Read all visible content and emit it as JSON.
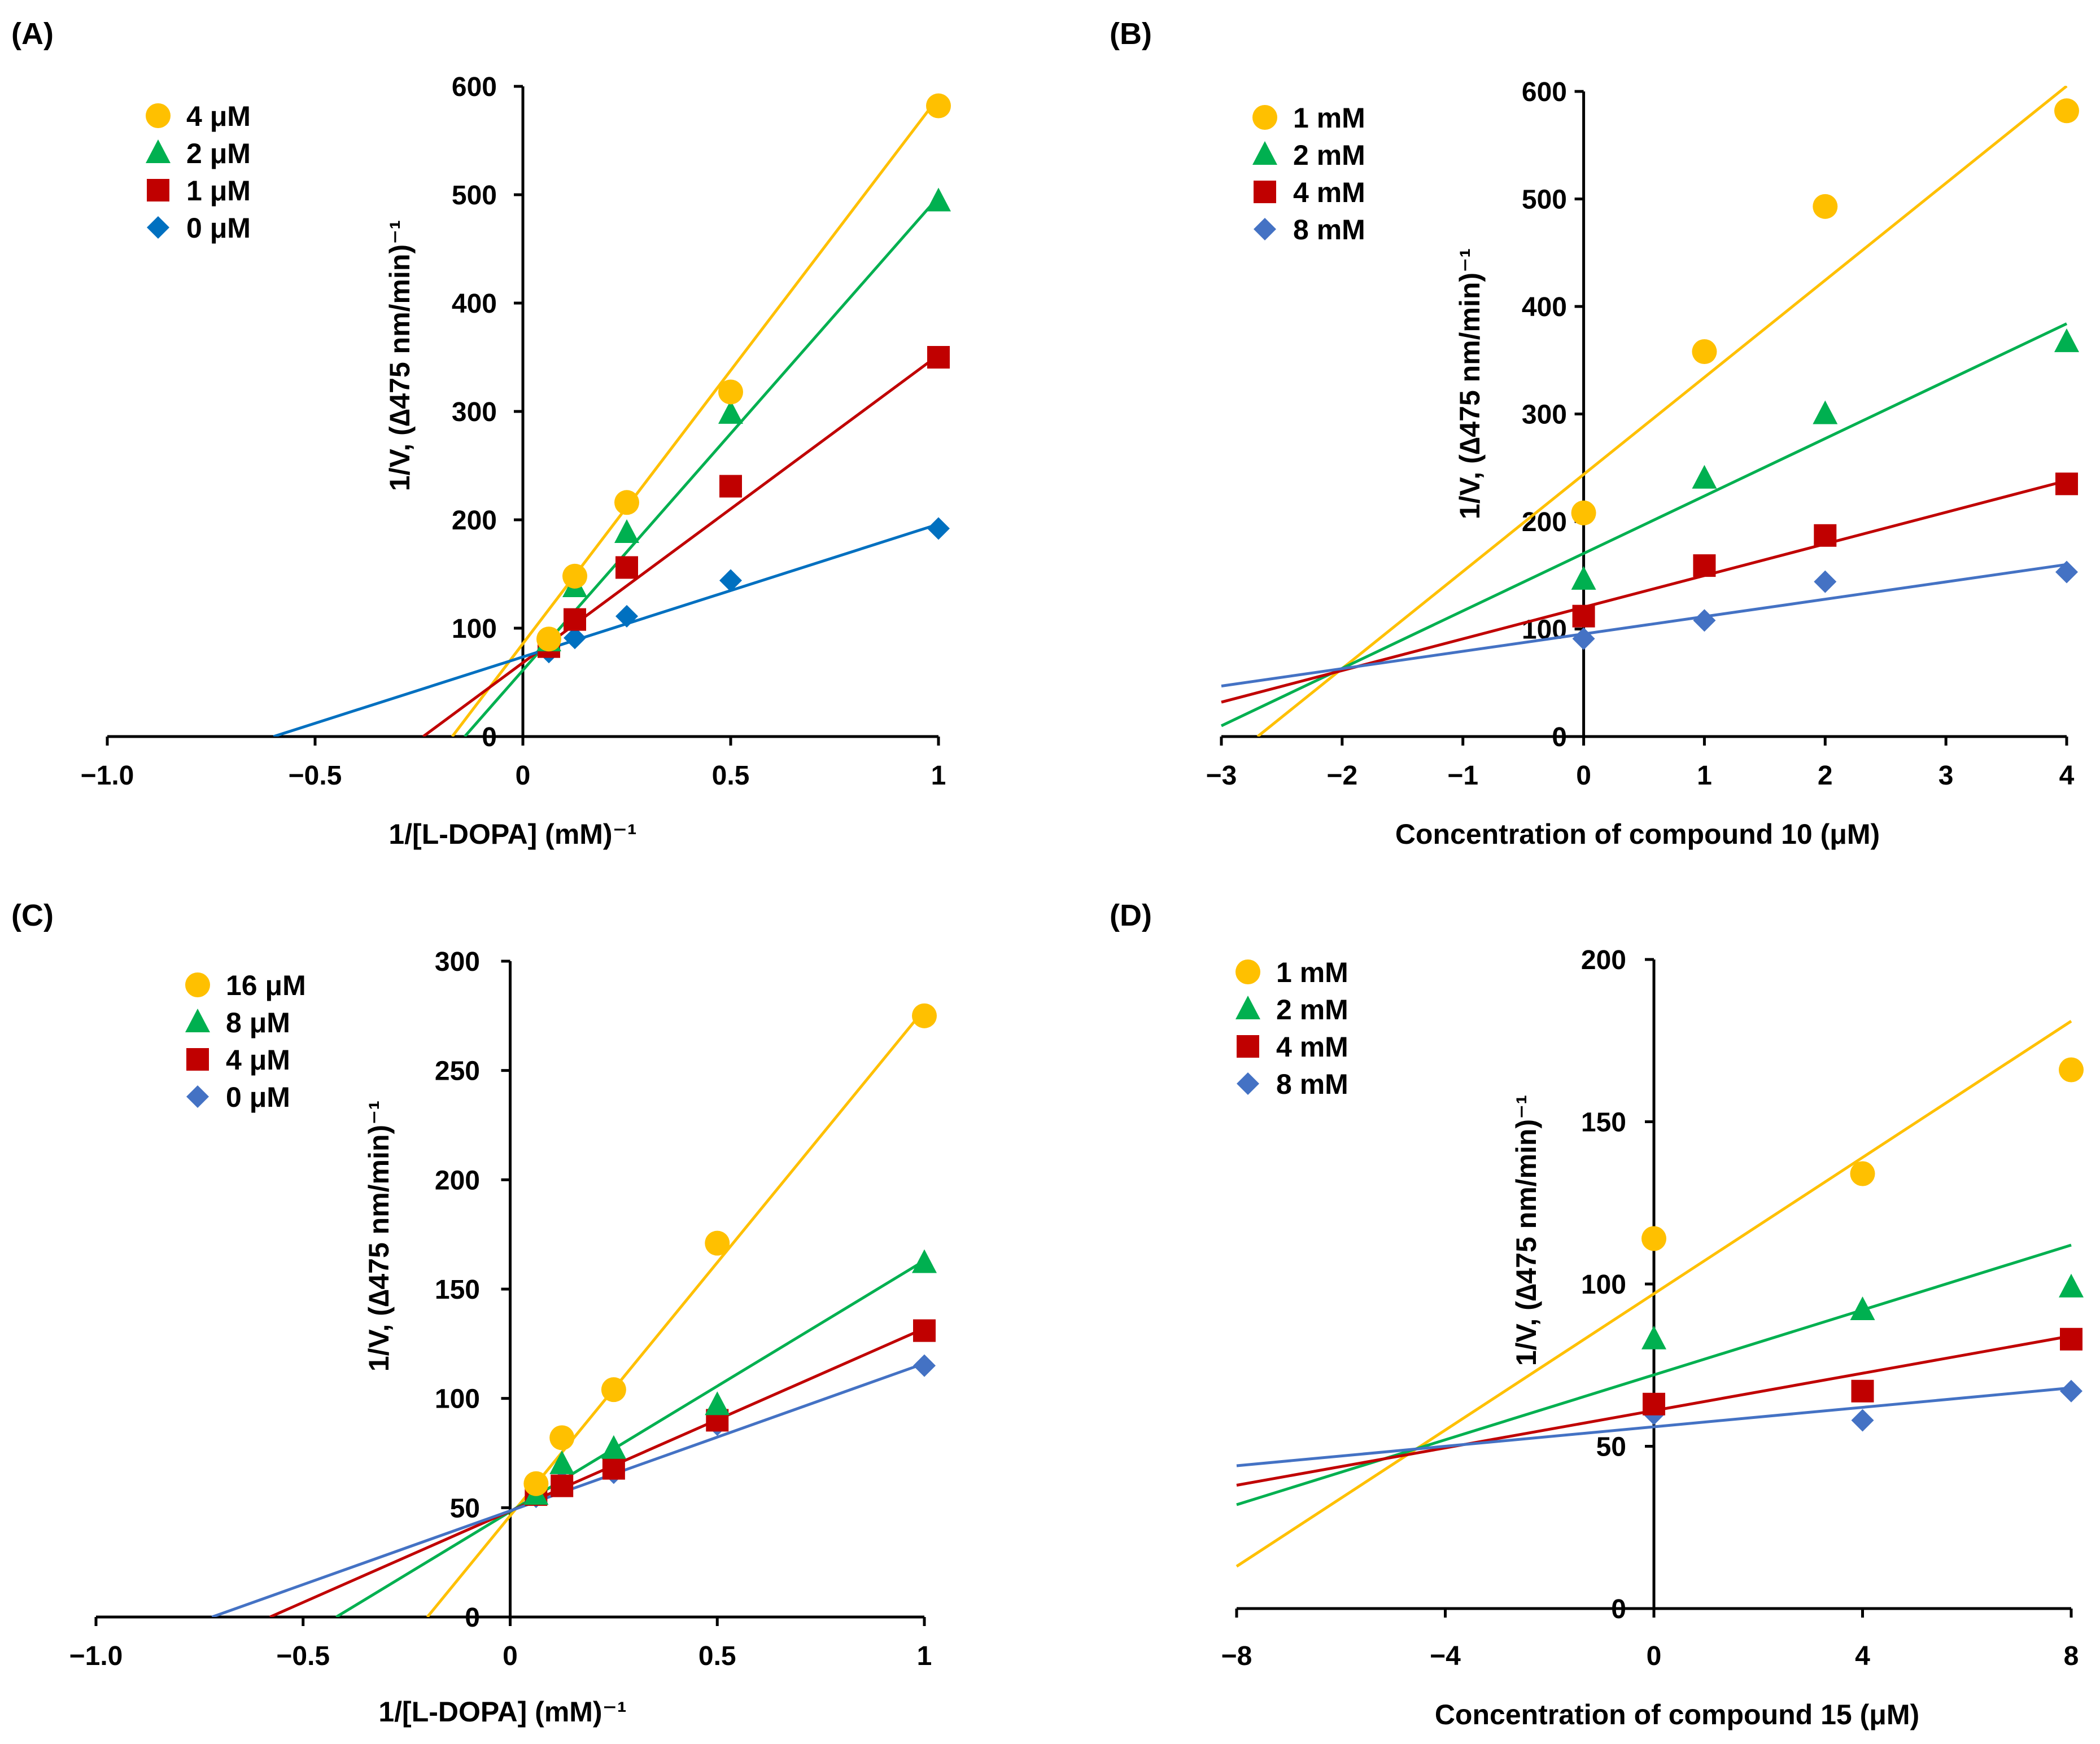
{
  "chart_data": [
    {
      "id": "A",
      "type": "scatter",
      "panel_label": "(A)",
      "xlabel": "1/[L-DOPA] (mM)⁻¹",
      "ylabel": "1/V, (∆475 nm/min)⁻¹",
      "xlim": [
        -1.0,
        1.0
      ],
      "ylim": [
        0,
        600
      ],
      "xticks": [
        -1.0,
        -0.5,
        0,
        0.5,
        1
      ],
      "xtick_labels": [
        "−1.0",
        "−0.5",
        "0",
        "0.5",
        "1"
      ],
      "yticks": [
        0,
        100,
        200,
        300,
        400,
        500,
        600
      ],
      "ytick_labels": [
        "0",
        "100",
        "200",
        "300",
        "400",
        "500",
        "600"
      ],
      "legend_position": "top-left",
      "series": [
        {
          "name": "4 μM",
          "color": "#FFC000",
          "marker": "circle",
          "x": [
            0.0625,
            0.125,
            0.25,
            0.5,
            1
          ],
          "y": [
            90,
            148,
            216,
            318,
            582
          ],
          "fit": [
            [
              -0.17,
              0
            ],
            [
              1,
              590
            ]
          ]
        },
        {
          "name": "2 μM",
          "color": "#00B050",
          "marker": "triangle",
          "x": [
            0.0625,
            0.125,
            0.25,
            0.5,
            1
          ],
          "y": [
            88,
            138,
            188,
            298,
            494
          ],
          "fit": [
            [
              -0.14,
              0
            ],
            [
              1,
              498
            ]
          ]
        },
        {
          "name": "1 μM",
          "color": "#C00000",
          "marker": "square",
          "x": [
            0.0625,
            0.125,
            0.25,
            0.5,
            1
          ],
          "y": [
            83,
            108,
            156,
            231,
            350
          ],
          "fit": [
            [
              -0.24,
              0
            ],
            [
              1,
              352
            ]
          ]
        },
        {
          "name": "0 μM",
          "color": "#0070C0",
          "marker": "diamond",
          "x": [
            0.0625,
            0.125,
            0.25,
            0.5,
            1
          ],
          "y": [
            78,
            91,
            111,
            144,
            192
          ],
          "fit": [
            [
              -0.6,
              0
            ],
            [
              1,
              196
            ]
          ]
        }
      ]
    },
    {
      "id": "B",
      "type": "scatter",
      "panel_label": "(B)",
      "xlabel": "Concentration of compound 10 (μM)",
      "ylabel": "1/V, (∆475 nm/min)⁻¹",
      "xlim": [
        -3,
        4
      ],
      "ylim": [
        0,
        600
      ],
      "xticks": [
        -3,
        -2,
        -1,
        0,
        1,
        2,
        3,
        4
      ],
      "xtick_labels": [
        "−3",
        "−2",
        "−1",
        "0",
        "1",
        "2",
        "3",
        "4"
      ],
      "yticks": [
        0,
        100,
        200,
        300,
        400,
        500,
        600
      ],
      "ytick_labels": [
        "0",
        "100",
        "200",
        "300",
        "400",
        "500",
        "600"
      ],
      "legend_position": "top-left",
      "series": [
        {
          "name": "1 mM",
          "color": "#FFC000",
          "marker": "circle",
          "x": [
            0,
            1,
            2,
            4
          ],
          "y": [
            208,
            358,
            493,
            582
          ],
          "fit": [
            [
              -2.7,
              0
            ],
            [
              4,
              605
            ]
          ]
        },
        {
          "name": "2 mM",
          "color": "#00B050",
          "marker": "triangle",
          "x": [
            0,
            1,
            2,
            4
          ],
          "y": [
            146,
            240,
            300,
            367
          ],
          "fit": [
            [
              -3,
              10
            ],
            [
              4,
              384
            ]
          ]
        },
        {
          "name": "4 mM",
          "color": "#C00000",
          "marker": "square",
          "x": [
            0,
            1,
            2,
            4
          ],
          "y": [
            112,
            159,
            187,
            235
          ],
          "fit": [
            [
              -3,
              32
            ],
            [
              4,
              238
            ]
          ]
        },
        {
          "name": "8 mM",
          "color": "#4472C4",
          "marker": "diamond",
          "x": [
            0,
            1,
            2,
            4
          ],
          "y": [
            91,
            108,
            144,
            153
          ],
          "fit": [
            [
              -3,
              47
            ],
            [
              4,
              160
            ]
          ]
        }
      ]
    },
    {
      "id": "C",
      "type": "scatter",
      "panel_label": "(C)",
      "xlabel": "1/[L-DOPA] (mM)⁻¹",
      "ylabel": "1/V, (∆475 nm/min)⁻¹",
      "xlim": [
        -1.0,
        1.0
      ],
      "ylim": [
        0,
        300
      ],
      "xticks": [
        -1.0,
        -0.5,
        0,
        0.5,
        1
      ],
      "xtick_labels": [
        "−1.0",
        "−0.5",
        "0",
        "0.5",
        "1"
      ],
      "yticks": [
        0,
        50,
        100,
        150,
        200,
        250,
        300
      ],
      "ytick_labels": [
        "0",
        "50",
        "100",
        "150",
        "200",
        "250",
        "300"
      ],
      "legend_position": "top-left",
      "series": [
        {
          "name": "16 μM",
          "color": "#FFC000",
          "marker": "circle",
          "x": [
            0.0625,
            0.125,
            0.25,
            0.5,
            1
          ],
          "y": [
            61,
            82,
            104,
            171,
            275
          ],
          "fit": [
            [
              -0.2,
              0
            ],
            [
              1,
              278
            ]
          ]
        },
        {
          "name": "8 μM",
          "color": "#00B050",
          "marker": "triangle",
          "x": [
            0.0625,
            0.125,
            0.25,
            0.5,
            1
          ],
          "y": [
            56,
            70,
            77,
            97,
            162
          ],
          "fit": [
            [
              -0.42,
              0
            ],
            [
              1,
              163
            ]
          ]
        },
        {
          "name": "4 μM",
          "color": "#C00000",
          "marker": "square",
          "x": [
            0.0625,
            0.125,
            0.25,
            0.5,
            1
          ],
          "y": [
            56,
            60,
            68,
            90,
            131
          ],
          "fit": [
            [
              -0.58,
              0
            ],
            [
              1,
              132
            ]
          ]
        },
        {
          "name": "0 μM",
          "color": "#4472C4",
          "marker": "diamond",
          "x": [
            0.0625,
            0.125,
            0.25,
            0.5,
            1
          ],
          "y": [
            55,
            62,
            66,
            88,
            115
          ],
          "fit": [
            [
              -0.72,
              0
            ],
            [
              1,
              116
            ]
          ]
        }
      ]
    },
    {
      "id": "D",
      "type": "scatter",
      "panel_label": "(D)",
      "xlabel": "Concentration of compound 15 (μM)",
      "ylabel": "1/V, (∆475 nm/min)⁻¹",
      "xlim": [
        -8,
        8
      ],
      "ylim": [
        0,
        200
      ],
      "xticks": [
        -8,
        -4,
        0,
        4,
        8
      ],
      "xtick_labels": [
        "−8",
        "−4",
        "0",
        "4",
        "8"
      ],
      "yticks": [
        0,
        50,
        100,
        150,
        200
      ],
      "ytick_labels": [
        "0",
        "50",
        "100",
        "150",
        "200"
      ],
      "legend_position": "top-left",
      "series": [
        {
          "name": "1 mM",
          "color": "#FFC000",
          "marker": "circle",
          "x": [
            0,
            4,
            8
          ],
          "y": [
            114,
            134,
            166
          ],
          "fit": [
            [
              -8,
              13
            ],
            [
              8,
              181
            ]
          ]
        },
        {
          "name": "2 mM",
          "color": "#00B050",
          "marker": "triangle",
          "x": [
            0,
            4,
            8
          ],
          "y": [
            83,
            92,
            99
          ],
          "fit": [
            [
              -8,
              32
            ],
            [
              8,
              112
            ]
          ]
        },
        {
          "name": "4 mM",
          "color": "#C00000",
          "marker": "square",
          "x": [
            0,
            4,
            8
          ],
          "y": [
            63,
            67,
            83
          ],
          "fit": [
            [
              -8,
              38
            ],
            [
              8,
              84
            ]
          ]
        },
        {
          "name": "8 mM",
          "color": "#4472C4",
          "marker": "diamond",
          "x": [
            0,
            4,
            8
          ],
          "y": [
            60,
            58,
            67
          ],
          "fit": [
            [
              -8,
              44
            ],
            [
              8,
              68
            ]
          ]
        }
      ]
    }
  ]
}
